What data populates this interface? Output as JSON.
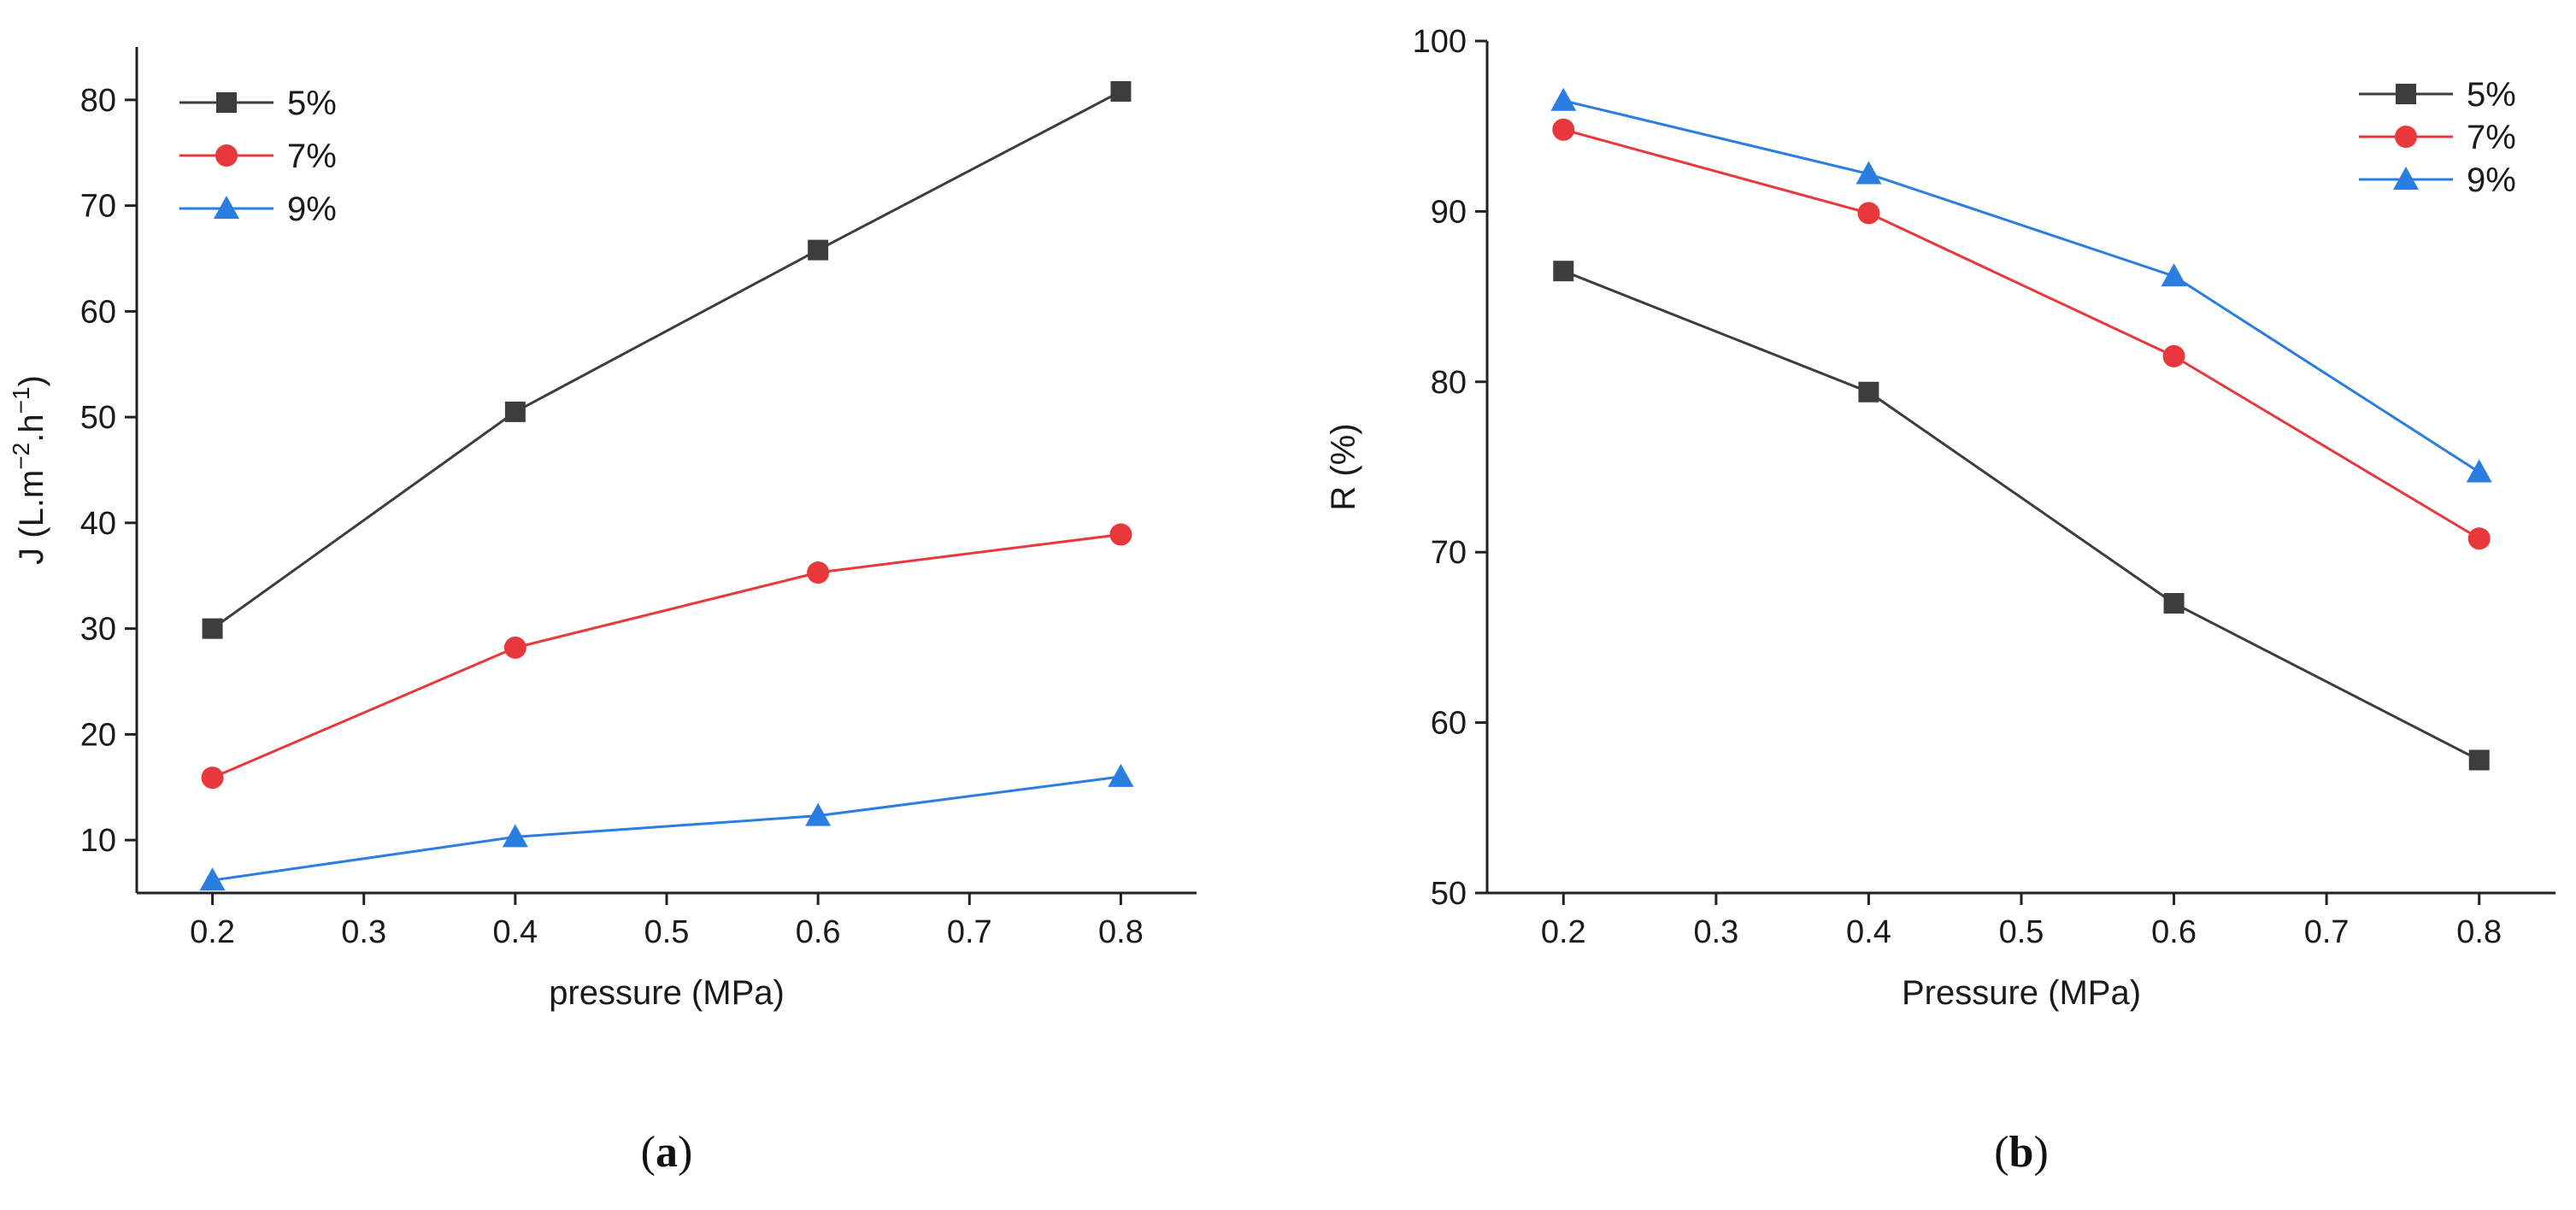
{
  "chart_data": [
    {
      "type": "line",
      "caption": {
        "open": "(",
        "letter": "a",
        "close": ")"
      },
      "xlabel": "pressure (MPa)",
      "ylabel": {
        "base": "J (L.m",
        "sup1": "−2",
        "mid": ".h",
        "sup2": "−1",
        "end": ")"
      },
      "xlim": [
        0.15,
        0.85
      ],
      "ylim": [
        5,
        85
      ],
      "xticks": [
        0.2,
        0.3,
        0.4,
        0.5,
        0.6,
        0.7,
        0.8
      ],
      "xtick_labels": [
        "0.2",
        "0.3",
        "0.4",
        "0.5",
        "0.6",
        "0.7",
        "0.8"
      ],
      "yticks": [
        10,
        20,
        30,
        40,
        50,
        60,
        70,
        80
      ],
      "ytick_labels": [
        "10",
        "20",
        "30",
        "40",
        "50",
        "60",
        "70",
        "80"
      ],
      "legend_position": "top-left",
      "x": [
        0.2,
        0.4,
        0.6,
        0.8
      ],
      "series": [
        {
          "name": "5%",
          "marker": "square",
          "color": "#3d3d3d",
          "values": [
            30,
            50.5,
            65.8,
            80.8
          ]
        },
        {
          "name": "7%",
          "marker": "circle",
          "color": "#e8383b",
          "values": [
            15.9,
            28.2,
            35.3,
            38.9
          ]
        },
        {
          "name": "9%",
          "marker": "triangle",
          "color": "#2a7de1",
          "values": [
            6.2,
            10.3,
            12.3,
            16
          ]
        }
      ]
    },
    {
      "type": "line",
      "caption": {
        "open": "(",
        "letter": "b",
        "close": ")"
      },
      "xlabel": "Pressure (MPa)",
      "ylabel": {
        "base": "R (%)"
      },
      "xlim": [
        0.15,
        0.85
      ],
      "ylim": [
        50,
        100
      ],
      "xticks": [
        0.2,
        0.3,
        0.4,
        0.5,
        0.6,
        0.7,
        0.8
      ],
      "xtick_labels": [
        "0.2",
        "0.3",
        "0.4",
        "0.5",
        "0.6",
        "0.7",
        "0.8"
      ],
      "yticks": [
        50,
        60,
        70,
        80,
        90,
        100
      ],
      "ytick_labels": [
        "50",
        "60",
        "70",
        "80",
        "90",
        "100"
      ],
      "legend_position": "top-right",
      "x": [
        0.2,
        0.4,
        0.6,
        0.8
      ],
      "series": [
        {
          "name": "5%",
          "marker": "square",
          "color": "#3d3d3d",
          "values": [
            86.5,
            79.4,
            67,
            57.8
          ]
        },
        {
          "name": "7%",
          "marker": "circle",
          "color": "#e8383b",
          "values": [
            94.8,
            89.9,
            81.5,
            70.8
          ]
        },
        {
          "name": "9%",
          "marker": "triangle",
          "color": "#2a7de1",
          "values": [
            96.5,
            92.2,
            86.2,
            74.7
          ]
        }
      ]
    }
  ]
}
